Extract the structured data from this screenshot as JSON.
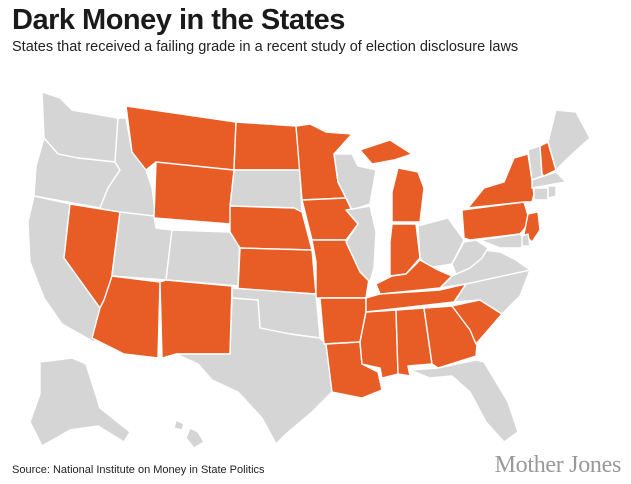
{
  "header": {
    "title": "Dark Money in the States",
    "subtitle": "States that received a failing grade in a recent study of election disclosure laws"
  },
  "footer": {
    "source": "Source: National Institute on Money in State Politics",
    "brand": "Mother Jones"
  },
  "colors": {
    "failing": "#e85c25",
    "other": "#d5d5d5",
    "border": "#ffffff"
  },
  "map": {
    "failing_states": [
      "MT",
      "ND",
      "WY",
      "NV",
      "NE",
      "MN",
      "IA",
      "KS",
      "MO",
      "AZ",
      "NM",
      "AR",
      "OK_no",
      "LA",
      "MS",
      "AL",
      "GA",
      "SC",
      "TN",
      "KY",
      "IN",
      "MI",
      "NY",
      "PA",
      "NJ",
      "NH"
    ],
    "other_states": [
      "WA",
      "OR",
      "ID",
      "CA",
      "UT",
      "CO",
      "SD",
      "TX",
      "OK",
      "WI",
      "IL",
      "OH",
      "WV",
      "VA",
      "NC",
      "FL",
      "ME",
      "VT",
      "MA",
      "CT",
      "RI",
      "DE",
      "MD",
      "AK",
      "HI"
    ]
  }
}
